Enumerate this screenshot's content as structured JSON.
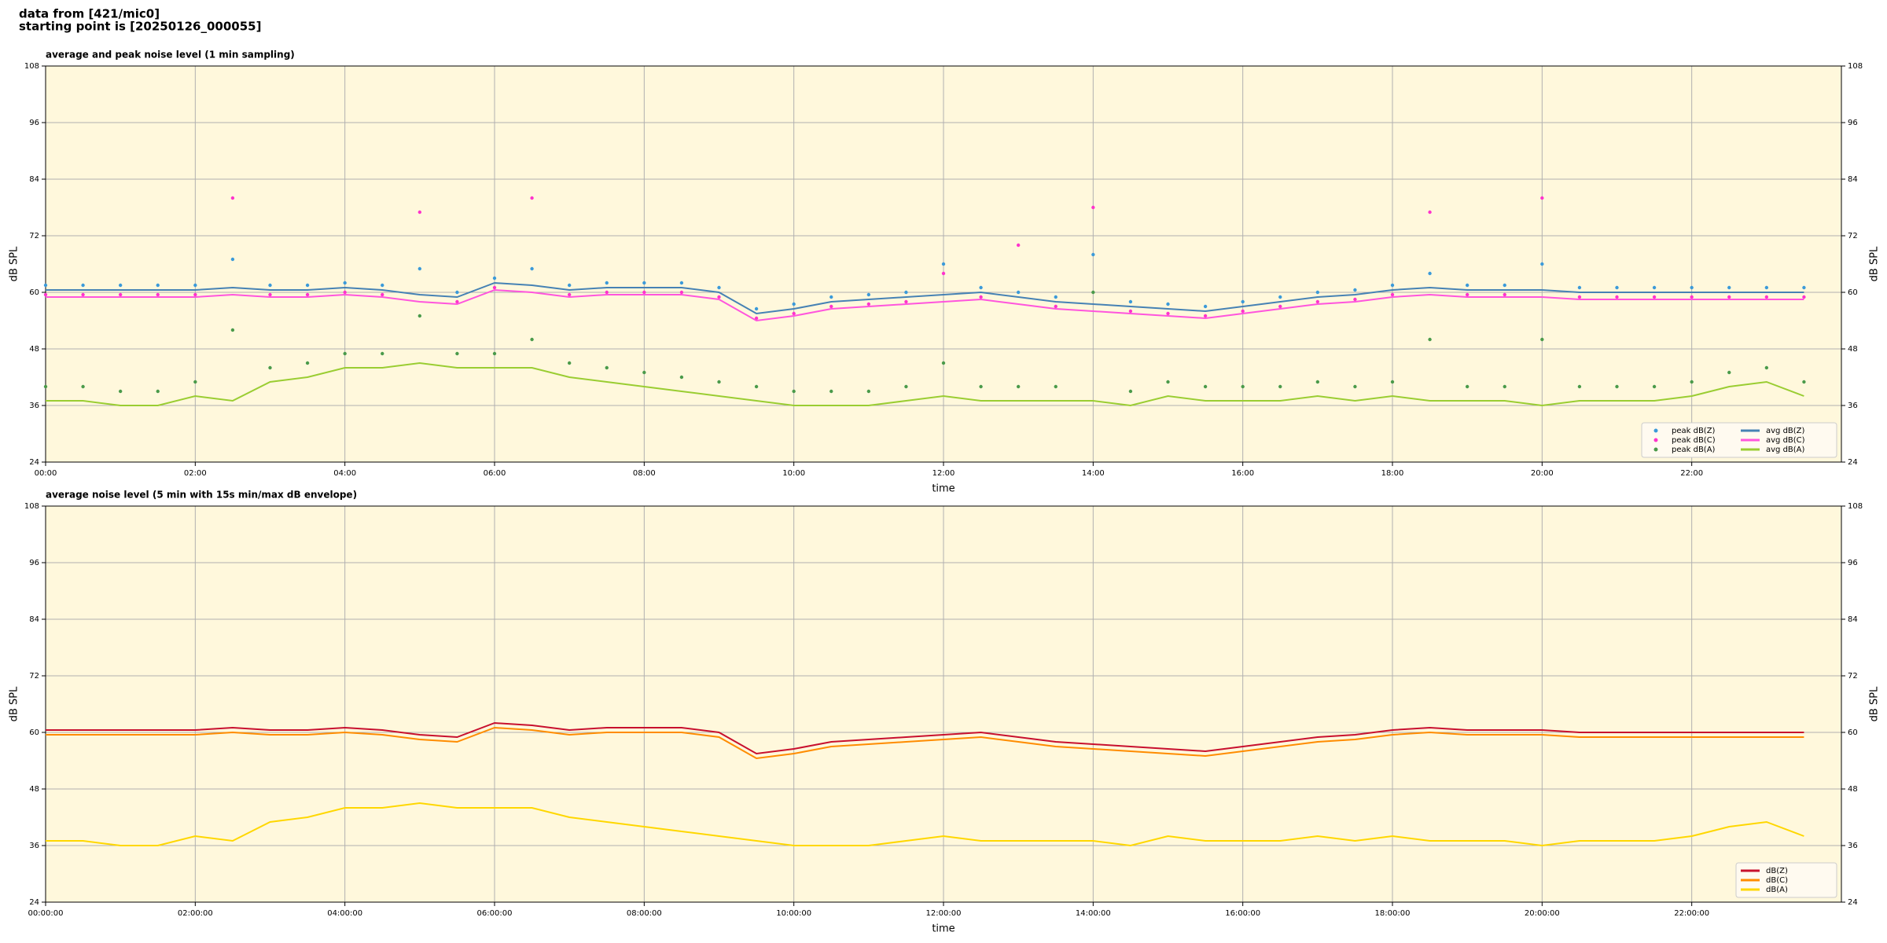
{
  "header": [
    "data from [421/mic0]",
    "starting point is [20250126_000055]"
  ],
  "chart_data": [
    {
      "type": "line",
      "title": "average and peak noise level (1 min sampling)",
      "x_label": "time",
      "y_label": "dB SPL",
      "xlim": [
        0,
        24
      ],
      "ylim": [
        24,
        108
      ],
      "yticks": [
        24,
        36,
        48,
        60,
        72,
        84,
        96,
        108
      ],
      "xticks": [
        {
          "value": 0,
          "label": "00:00"
        },
        {
          "value": 2,
          "label": "02:00"
        },
        {
          "value": 4,
          "label": "04:00"
        },
        {
          "value": 6,
          "label": "06:00"
        },
        {
          "value": 8,
          "label": "08:00"
        },
        {
          "value": 10,
          "label": "10:00"
        },
        {
          "value": 12,
          "label": "12:00"
        },
        {
          "value": 14,
          "label": "14:00"
        },
        {
          "value": 16,
          "label": "16:00"
        },
        {
          "value": 18,
          "label": "18:00"
        },
        {
          "value": 20,
          "label": "20:00"
        },
        {
          "value": 22,
          "label": "22:00"
        }
      ],
      "grid": true,
      "legend": "lower right",
      "x": [
        0,
        0.5,
        1,
        1.5,
        2,
        2.5,
        3,
        3.5,
        4,
        4.5,
        5,
        5.5,
        6,
        6.5,
        7,
        7.5,
        8,
        8.5,
        9,
        9.5,
        10,
        10.5,
        11,
        11.5,
        12,
        12.5,
        13,
        13.5,
        14,
        14.5,
        15,
        15.5,
        16,
        16.5,
        17,
        17.5,
        18,
        18.5,
        19,
        19.5,
        20,
        20.5,
        21,
        21.5,
        22,
        22.5,
        23,
        23.5
      ],
      "series": [
        {
          "name": "peak dB(Z)",
          "color": "#3b9ad9",
          "mode": "markers",
          "values": [
            61.5,
            61.5,
            61.5,
            61.5,
            61.5,
            67,
            61.5,
            61.5,
            62,
            61.5,
            65,
            60,
            63,
            65,
            61.5,
            62,
            62,
            62,
            61,
            56.5,
            57.5,
            59,
            59.5,
            60,
            66,
            61,
            60,
            59,
            68,
            58,
            57.5,
            57,
            58,
            59,
            60,
            60.5,
            61.5,
            64,
            61.5,
            61.5,
            66,
            61,
            61,
            61,
            61,
            61,
            61,
            61
          ]
        },
        {
          "name": "peak dB(C)",
          "color": "#ff33cc",
          "mode": "markers",
          "values": [
            59.5,
            59.5,
            59.5,
            59.5,
            59.5,
            80,
            59.5,
            59.5,
            60,
            59.5,
            77,
            58,
            61,
            80,
            59.5,
            60,
            60,
            60,
            59,
            54.5,
            55.5,
            57,
            57.5,
            58,
            64,
            59,
            70,
            57,
            78,
            56,
            55.5,
            55,
            56,
            57,
            58,
            58.5,
            59.5,
            77,
            59.5,
            59.5,
            80,
            59,
            59,
            59,
            59,
            59,
            59,
            59
          ]
        },
        {
          "name": "peak dB(A)",
          "color": "#4a9a4a",
          "mode": "markers",
          "values": [
            40,
            40,
            39,
            39,
            41,
            52,
            44,
            45,
            47,
            47,
            55,
            47,
            47,
            50,
            45,
            44,
            43,
            42,
            41,
            40,
            39,
            39,
            39,
            40,
            45,
            40,
            40,
            40,
            60,
            39,
            41,
            40,
            40,
            40,
            41,
            40,
            41,
            50,
            40,
            40,
            50,
            40,
            40,
            40,
            41,
            43,
            44,
            41
          ]
        },
        {
          "name": "avg dB(Z)",
          "color": "#4682b4",
          "mode": "lines",
          "values": [
            60.5,
            60.5,
            60.5,
            60.5,
            60.5,
            61,
            60.5,
            60.5,
            61,
            60.5,
            59.5,
            59,
            62,
            61.5,
            60.5,
            61,
            61,
            61,
            60,
            55.5,
            56.5,
            58,
            58.5,
            59,
            59.5,
            60,
            59,
            58,
            57.5,
            57,
            56.5,
            56,
            57,
            58,
            59,
            59.5,
            60.5,
            61,
            60.5,
            60.5,
            60.5,
            60,
            60,
            60,
            60,
            60,
            60,
            60
          ]
        },
        {
          "name": "avg dB(C)",
          "color": "#ff55dd",
          "mode": "lines",
          "values": [
            59,
            59,
            59,
            59,
            59,
            59.5,
            59,
            59,
            59.5,
            59,
            58,
            57.5,
            60.5,
            60,
            59,
            59.5,
            59.5,
            59.5,
            58.5,
            54,
            55,
            56.5,
            57,
            57.5,
            58,
            58.5,
            57.5,
            56.5,
            56,
            55.5,
            55,
            54.5,
            55.5,
            56.5,
            57.5,
            58,
            59,
            59.5,
            59,
            59,
            59,
            58.5,
            58.5,
            58.5,
            58.5,
            58.5,
            58.5,
            58.5
          ]
        },
        {
          "name": "avg dB(A)",
          "color": "#9acd32",
          "mode": "lines",
          "values": [
            37,
            37,
            36,
            36,
            38,
            37,
            41,
            42,
            44,
            44,
            45,
            44,
            44,
            44,
            42,
            41,
            40,
            39,
            38,
            37,
            36,
            36,
            36,
            37,
            38,
            37,
            37,
            37,
            37,
            36,
            38,
            37,
            37,
            37,
            38,
            37,
            38,
            37,
            37,
            37,
            36,
            37,
            37,
            37,
            38,
            40,
            41,
            38
          ]
        }
      ]
    },
    {
      "type": "line",
      "title": "average noise level (5 min with 15s min/max dB envelope)",
      "x_label": "time",
      "y_label": "dB SPL",
      "xlim": [
        0,
        24
      ],
      "ylim": [
        24,
        108
      ],
      "yticks": [
        24,
        36,
        48,
        60,
        72,
        84,
        96,
        108
      ],
      "xticks": [
        {
          "value": 0,
          "label": "00:00:00"
        },
        {
          "value": 2,
          "label": "02:00:00"
        },
        {
          "value": 4,
          "label": "04:00:00"
        },
        {
          "value": 6,
          "label": "06:00:00"
        },
        {
          "value": 8,
          "label": "08:00:00"
        },
        {
          "value": 10,
          "label": "10:00:00"
        },
        {
          "value": 12,
          "label": "12:00:00"
        },
        {
          "value": 14,
          "label": "14:00:00"
        },
        {
          "value": 16,
          "label": "16:00:00"
        },
        {
          "value": 18,
          "label": "18:00:00"
        },
        {
          "value": 20,
          "label": "20:00:00"
        },
        {
          "value": 22,
          "label": "22:00:00"
        }
      ],
      "grid": true,
      "legend": "lower right",
      "x": [
        0,
        0.5,
        1,
        1.5,
        2,
        2.5,
        3,
        3.5,
        4,
        4.5,
        5,
        5.5,
        6,
        6.5,
        7,
        7.5,
        8,
        8.5,
        9,
        9.5,
        10,
        10.5,
        11,
        11.5,
        12,
        12.5,
        13,
        13.5,
        14,
        14.5,
        15,
        15.5,
        16,
        16.5,
        17,
        17.5,
        18,
        18.5,
        19,
        19.5,
        20,
        20.5,
        21,
        21.5,
        22,
        22.5,
        23,
        23.5
      ],
      "series": [
        {
          "name": "dB(Z)",
          "color": "#c8102e",
          "mode": "lines",
          "values": [
            60.5,
            60.5,
            60.5,
            60.5,
            60.5,
            61,
            60.5,
            60.5,
            61,
            60.5,
            59.5,
            59,
            62,
            61.5,
            60.5,
            61,
            61,
            61,
            60,
            55.5,
            56.5,
            58,
            58.5,
            59,
            59.5,
            60,
            59,
            58,
            57.5,
            57,
            56.5,
            56,
            57,
            58,
            59,
            59.5,
            60.5,
            61,
            60.5,
            60.5,
            60.5,
            60,
            60,
            60,
            60,
            60,
            60,
            60
          ]
        },
        {
          "name": "dB(C)",
          "color": "#ff8c00",
          "mode": "lines",
          "values": [
            59.5,
            59.5,
            59.5,
            59.5,
            59.5,
            60,
            59.5,
            59.5,
            60,
            59.5,
            58.5,
            58,
            61,
            60.5,
            59.5,
            60,
            60,
            60,
            59,
            54.5,
            55.5,
            57,
            57.5,
            58,
            58.5,
            59,
            58,
            57,
            56.5,
            56,
            55.5,
            55,
            56,
            57,
            58,
            58.5,
            59.5,
            60,
            59.5,
            59.5,
            59.5,
            59,
            59,
            59,
            59,
            59,
            59,
            59
          ]
        },
        {
          "name": "dB(A)",
          "color": "#ffd700",
          "mode": "lines",
          "values": [
            37,
            37,
            36,
            36,
            38,
            37,
            41,
            42,
            44,
            44,
            45,
            44,
            44,
            44,
            42,
            41,
            40,
            39,
            38,
            37,
            36,
            36,
            36,
            37,
            38,
            37,
            37,
            37,
            37,
            36,
            38,
            37,
            37,
            37,
            38,
            37,
            38,
            37,
            37,
            37,
            36,
            37,
            37,
            37,
            38,
            40,
            41,
            38
          ]
        }
      ]
    }
  ]
}
